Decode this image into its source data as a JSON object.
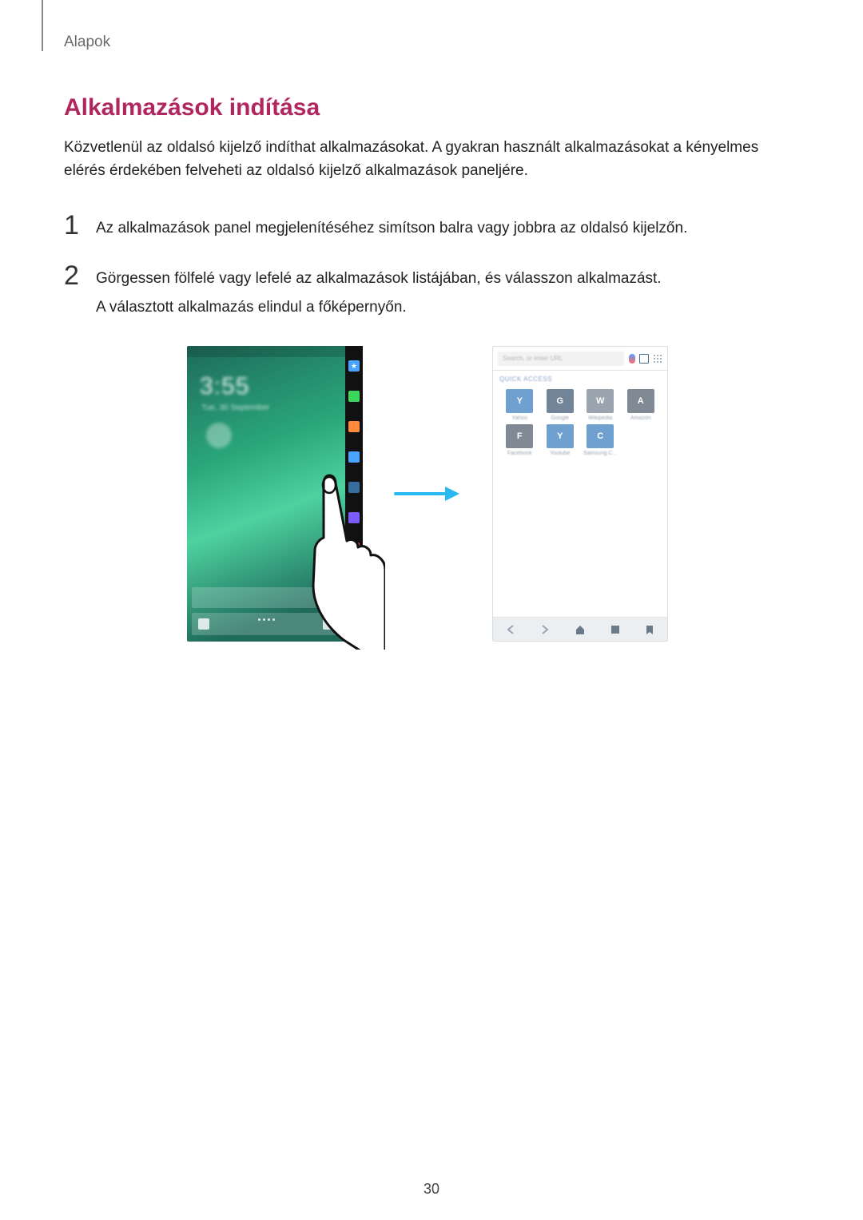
{
  "breadcrumb": "Alapok",
  "heading": "Alkalmazások indítása",
  "intro": "Közvetlenül az oldalsó kijelző indíthat alkalmazásokat. A gyakran használt alkalmazásokat a kényelmes elérés érdekében felveheti az oldalsó kijelző alkalmazások paneljére.",
  "steps": [
    {
      "num": "1",
      "lines": [
        "Az alkalmazások panel megjelenítéséhez simítson balra vagy jobbra az oldalsó kijelzőn."
      ]
    },
    {
      "num": "2",
      "lines": [
        "Görgessen fölfelé vagy lefelé az alkalmazások listájában, és válasszon alkalmazást.",
        "A választott alkalmazás elindul a főképernyőn."
      ]
    }
  ],
  "left_phone": {
    "clock": "3:55",
    "date": "Tue, 30 September",
    "edge_icons": [
      {
        "bg": "#4aa3ff",
        "glyph": "★"
      },
      {
        "bg": "#3bd65b",
        "glyph": ""
      },
      {
        "bg": "#ff8a3b",
        "glyph": ""
      },
      {
        "bg": "#4aa3ff",
        "glyph": ""
      },
      {
        "bg": "#356e9c",
        "glyph": ""
      },
      {
        "bg": "#7b5dff",
        "glyph": ""
      },
      {
        "bg": "#ff4d4d",
        "glyph": ""
      }
    ]
  },
  "right_phone": {
    "url_placeholder": "Search, or enter URL",
    "quick_label": "Quick Access",
    "tiles": [
      {
        "letter": "Y",
        "bg": "#6fa0cf",
        "label": "Yahoo"
      },
      {
        "letter": "G",
        "bg": "#728598",
        "label": "Google"
      },
      {
        "letter": "W",
        "bg": "#99a4ae",
        "label": "Wikipedia"
      },
      {
        "letter": "A",
        "bg": "#7f8a94",
        "label": "Amazon"
      },
      {
        "letter": "F",
        "bg": "#7f8a94",
        "label": "Facebook"
      },
      {
        "letter": "Y",
        "bg": "#6fa0cf",
        "label": "Youtube"
      },
      {
        "letter": "C",
        "bg": "#6fa0cf",
        "label": "Samsung C..."
      }
    ]
  },
  "arrow_color": "#27b9ef",
  "page_number": "30"
}
